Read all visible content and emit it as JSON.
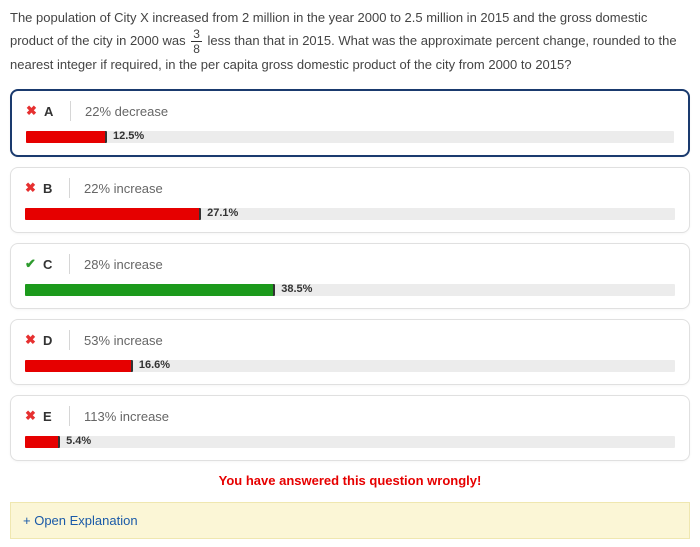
{
  "question": {
    "part1": "The population of City X increased from 2 million in the year 2000 to 2.5 million in 2015 and the gross domestic product of the city in 2000 was ",
    "frac_num": "3",
    "frac_den": "8",
    "part2": " less than that in 2015. What was the approximate percent change, rounded to the nearest integer if required, in the per capita gross domestic product of the city from 2000 to 2015?"
  },
  "answers": [
    {
      "letter": "A",
      "text": "22% decrease",
      "pct_label": "12.5%",
      "pct_value": 12.5,
      "mark": "wrong",
      "color": "red",
      "selected": true
    },
    {
      "letter": "B",
      "text": "22% increase",
      "pct_label": "27.1%",
      "pct_value": 27.1,
      "mark": "wrong",
      "color": "red",
      "selected": false
    },
    {
      "letter": "C",
      "text": "28% increase",
      "pct_label": "38.5%",
      "pct_value": 38.5,
      "mark": "right",
      "color": "green",
      "selected": false
    },
    {
      "letter": "D",
      "text": "53% increase",
      "pct_label": "16.6%",
      "pct_value": 16.6,
      "mark": "wrong",
      "color": "red",
      "selected": false
    },
    {
      "letter": "E",
      "text": "113% increase",
      "pct_label": "5.4%",
      "pct_value": 5.4,
      "mark": "wrong",
      "color": "red",
      "selected": false
    }
  ],
  "bar_track_color": "#ececec",
  "bar_colors": {
    "red": "#e60000",
    "green": "#1c9a1c"
  },
  "feedback": "You have answered this question wrongly!",
  "explain_label": "+ Open Explanation",
  "marks": {
    "wrong": "✖",
    "right": "✔"
  }
}
